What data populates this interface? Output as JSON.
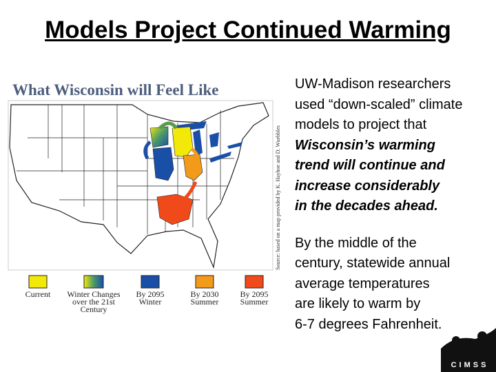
{
  "title": "Models Project Continued Warming",
  "figure": {
    "heading": "What Wisconsin will Feel Like",
    "source_note": "Source: based on a map provided by K. Hayhoe and D. Wuebbles",
    "legend": [
      {
        "label_lines": [
          "Current"
        ]
      },
      {
        "label_lines": [
          "Winter Changes",
          "over the 21st",
          "Century"
        ]
      },
      {
        "label_lines": [
          "By 2095",
          "Winter"
        ]
      },
      {
        "label_lines": [
          "By 2030",
          "Summer"
        ]
      },
      {
        "label_lines": [
          "By 2095",
          "Summer"
        ]
      }
    ]
  },
  "body": {
    "paragraph_1": {
      "lines": [
        "UW-Madison researchers",
        "used “down-scaled” climate",
        "models to project that"
      ],
      "emphasis_lines": [
        "Wisconsin’s warming",
        "trend will continue and",
        "increase considerably",
        "in the decades ahead."
      ]
    },
    "paragraph_2": {
      "lines": [
        "By the middle of the",
        "century, statewide annual",
        "average temperatures",
        "are likely to warm by",
        "6-7 degrees Fahrenheit."
      ]
    }
  },
  "logo": {
    "text": "CIMSS"
  }
}
